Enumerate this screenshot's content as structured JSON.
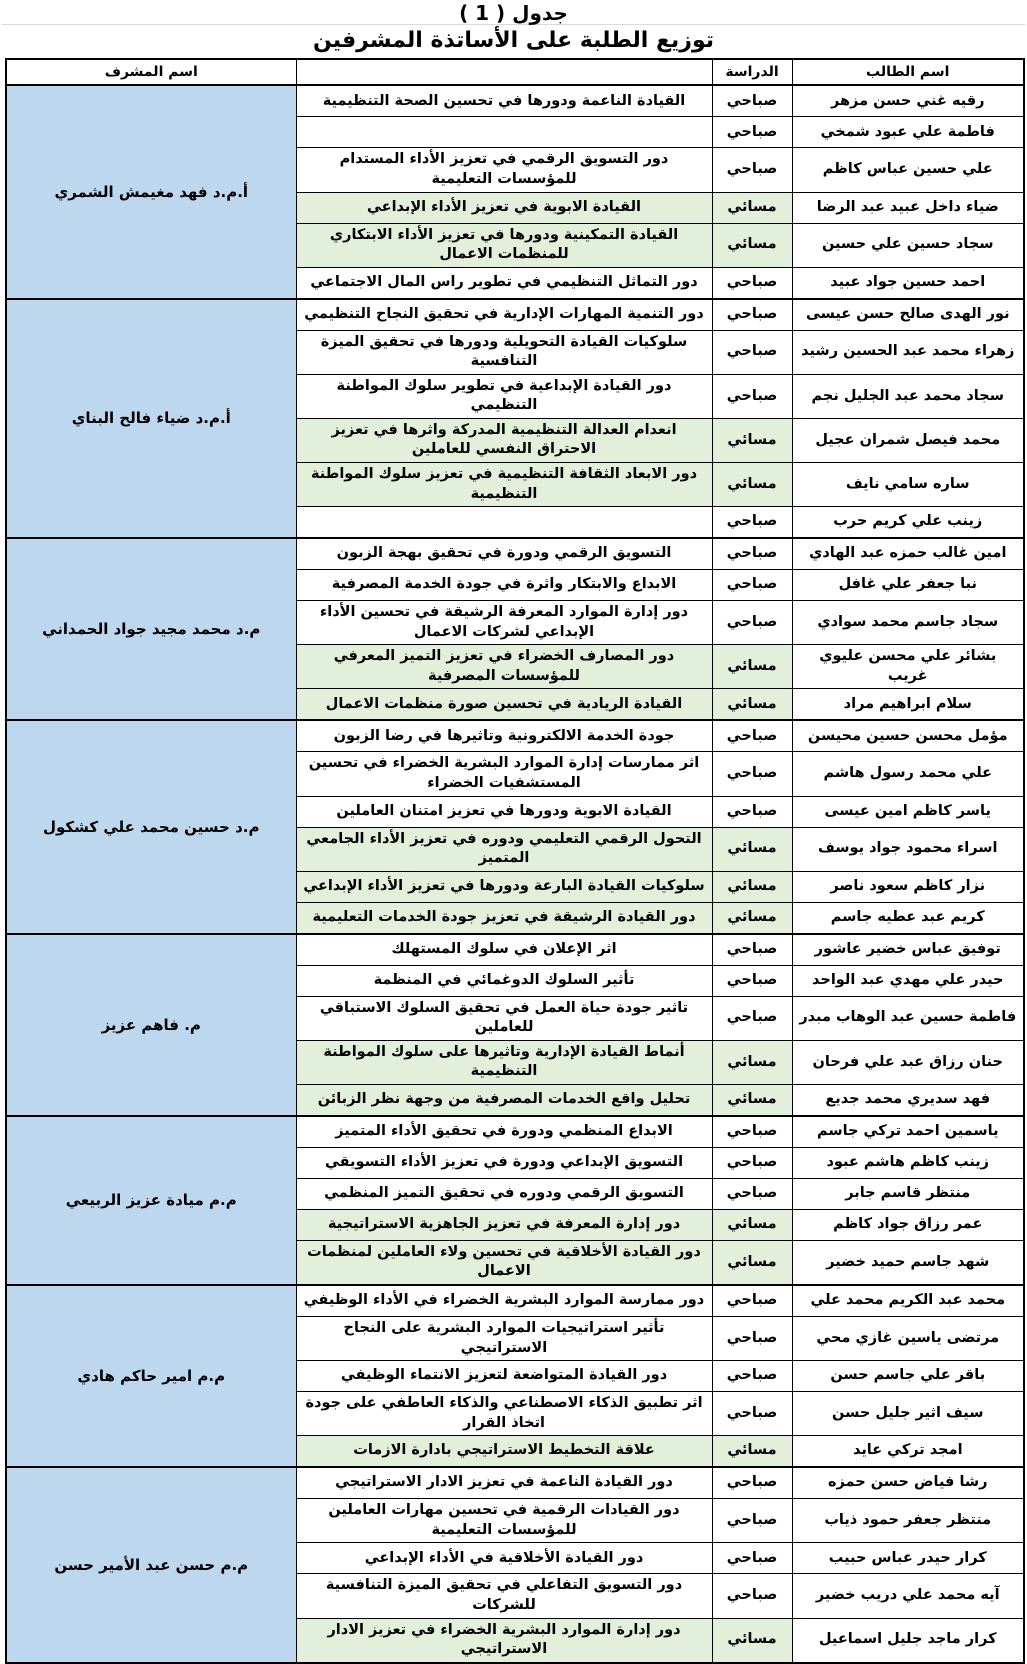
{
  "title": "جدول ( 1 )",
  "subtitle": "توزيع الطلبة على الأساتذة المشرفين",
  "columns": {
    "student": "اسم الطالب",
    "study": "الدراسة",
    "thesis": "",
    "supervisor": "اسم المشرف"
  },
  "colors": {
    "supervisor_bg": "#bdd7ee",
    "evening_row_bg": "#e2efda",
    "border": "#000000"
  },
  "study_values": {
    "morning": "صباحي",
    "evening": "مسائي"
  },
  "evening_value": "مسائي",
  "groups": [
    {
      "supervisor": "أ.م.د فهد مغيمش الشمري",
      "rows": [
        {
          "student": "رقيه غني حسن مزهر",
          "study": "صباحي",
          "thesis": "القيادة الناعمة ودورها في تحسين الصحة التنظيمية"
        },
        {
          "student": "فاطمة علي عبود شمخي",
          "study": "صباحي",
          "thesis": ""
        },
        {
          "student": "علي حسين عباس كاظم",
          "study": "صباحي",
          "thesis": "دور التسويق الرقمي في تعزيز الأداء المستدام للمؤسسات التعليمية"
        },
        {
          "student": "ضياء داخل عبيد عبد الرضا",
          "study": "مسائي",
          "thesis": "القيادة الابوية في تعزيز الأداء الإبداعي"
        },
        {
          "student": "سجاد حسين علي حسين",
          "study": "مسائي",
          "thesis": "القيادة التمكينية ودورها في تعزيز الأداء الابتكاري للمنظمات الاعمال"
        },
        {
          "student": "احمد حسين جواد عبيد",
          "study": "صباحي",
          "thesis": "دور التماثل التنظيمي في تطوير راس المال الاجتماعي"
        }
      ]
    },
    {
      "supervisor": "أ.م.د ضياء فالح البناي",
      "rows": [
        {
          "student": "نور الهدى صالح حسن عيسى",
          "study": "صباحي",
          "thesis": "دور التنمية المهارات الإدارية في تحقيق النجاح التنظيمي"
        },
        {
          "student": "زهراء محمد عبد الحسين رشيد",
          "study": "صباحي",
          "thesis": "سلوكيات القيادة التحويلية ودورها في تحقيق الميزة التنافسية"
        },
        {
          "student": "سجاد محمد عبد الجليل نجم",
          "study": "صباحي",
          "thesis": "دور القيادة الإبداعية في تطوير سلوك المواطنة التنظيمي"
        },
        {
          "student": "محمد فيصل شمران عجيل",
          "study": "مسائي",
          "thesis": "انعدام العدالة التنظيمية المدركة واثرها في تعزيز الاحتراق النفسي للعاملين"
        },
        {
          "student": "ساره سامي نايف",
          "study": "مسائي",
          "thesis": "دور الابعاد الثقافة التنظيمية في تعزيز سلوك المواطنة التنظيمية"
        },
        {
          "student": "زينب علي كريم حرب",
          "study": "صباحي",
          "thesis": ""
        }
      ]
    },
    {
      "supervisor": "م.د محمد مجيد جواد الحمداني",
      "rows": [
        {
          "student": "امين غالب حمزه عبد الهادي",
          "study": "صباحي",
          "thesis": "التسويق الرقمي ودورة في تحقيق بهجة الزبون"
        },
        {
          "student": "نبا جعفر علي غافل",
          "study": "صباحي",
          "thesis": "الابداع والابتكار واثرة في جودة الخدمة المصرفية"
        },
        {
          "student": "سجاد جاسم محمد سوادي",
          "study": "صباحي",
          "thesis": "دور إدارة الموارد المعرفة الرشيقة في تحسين الأداء الإبداعي لشركات الاعمال"
        },
        {
          "student": "بشائر علي محسن عليوي غريب",
          "study": "مسائي",
          "thesis": "دور المصارف الخضراء في تعزيز التميز المعرفي للمؤسسات المصرفية"
        },
        {
          "student": "سلام ابراهيم مراد",
          "study": "مسائي",
          "thesis": "القيادة الريادية في تحسين صورة منظمات الاعمال"
        }
      ]
    },
    {
      "supervisor": "م.د حسين محمد علي كشكول",
      "rows": [
        {
          "student": "مؤمل محسن حسين محيسن",
          "study": "صباحي",
          "thesis": "جودة الخدمة الالكترونية وتاثيرها في رضا الزبون"
        },
        {
          "student": "علي محمد رسول هاشم",
          "study": "صباحي",
          "thesis": "اثر ممارسات إدارة الموارد البشرية الخضراء في تحسين المستشفيات الخضراء"
        },
        {
          "student": "ياسر كاظم امين عيسى",
          "study": "صباحي",
          "thesis": "القيادة الابوية ودورها في تعزيز امتنان العاملين"
        },
        {
          "student": "اسراء محمود جواد يوسف",
          "study": "مسائي",
          "thesis": "التحول الرقمي التعليمي ودوره في تعزيز الأداء الجامعي المتميز"
        },
        {
          "student": "نزار كاظم سعود ناصر",
          "study": "مسائي",
          "thesis": "سلوكيات القيادة البارعة ودورها في تعزيز الأداء الإبداعي"
        },
        {
          "student": "كريم عبد عطيه جاسم",
          "study": "مسائي",
          "thesis": "دور القيادة الرشيقة في تعزيز جودة الخدمات التعليمية"
        }
      ]
    },
    {
      "supervisor": "م. فاهم عزيز",
      "rows": [
        {
          "student": "توفيق عباس خضير عاشور",
          "study": "صباحي",
          "thesis": "اثر الإعلان في سلوك المستهلك"
        },
        {
          "student": "حيدر علي مهدي عبد الواحد",
          "study": "صباحي",
          "thesis": "تأثير السلوك الدوغمائي في المنظمة"
        },
        {
          "student": "فاطمة حسين عبد الوهاب مبدر",
          "study": "صباحي",
          "thesis": "تاثير جودة حياة العمل في تحقيق السلوك الاستباقي للعاملين"
        },
        {
          "student": "حنان رزاق عبد علي فرحان",
          "study": "مسائي",
          "thesis": "أنماط القيادة الإدارية وتاثيرها على سلوك المواطنة التنظيمية"
        },
        {
          "student": "فهد سديري محمد جديع",
          "study": "مسائي",
          "thesis": "تحليل واقع الخدمات المصرفية من وجهة نظر الزبائن"
        }
      ]
    },
    {
      "supervisor": "م.م ميادة عزيز الربيعي",
      "rows": [
        {
          "student": "ياسمين احمد تركي جاسم",
          "study": "صباحي",
          "thesis": "الابداع المنظمي ودورة في تحقيق الأداء المتميز"
        },
        {
          "student": "زينب كاظم هاشم عبود",
          "study": "صباحي",
          "thesis": "التسويق الإبداعي ودورة في تعزيز الأداء التسويقي"
        },
        {
          "student": "منتظر قاسم جابر",
          "study": "صباحي",
          "thesis": "التسويق الرقمي ودوره في تحقيق التميز المنظمي"
        },
        {
          "student": "عمر رزاق جواد كاظم",
          "study": "مسائي",
          "thesis": "دور إدارة المعرفة في تعزيز الجاهزية الاستراتيجية"
        },
        {
          "student": "شهد جاسم حميد خضير",
          "study": "مسائي",
          "thesis": "دور القيادة الأخلاقية في تحسين ولاء العاملين لمنظمات الاعمال"
        }
      ]
    },
    {
      "supervisor": "م.م امير حاكم هادي",
      "rows": [
        {
          "student": "محمد عبد الكريم محمد علي",
          "study": "صباحي",
          "thesis": "دور ممارسة الموارد البشرية الخضراء في الأداء الوظيفي"
        },
        {
          "student": "مرتضى ياسين غازي محي",
          "study": "صباحي",
          "thesis": "تأثير استراتيجيات الموارد البشرية على النجاح الاستراتيجي"
        },
        {
          "student": "باقر علي جاسم حسن",
          "study": "صباحي",
          "thesis": "دور القيادة المتواضعة لتعزيز الانتماء الوظيفي"
        },
        {
          "student": "سيف اثير جليل حسن",
          "study": "صباحي",
          "thesis": "اثر تطبيق الذكاء الاصطناعي والذكاء العاطفي على جودة اتخاذ القرار"
        },
        {
          "student": "امجد تركي عايد",
          "study": "مسائي",
          "thesis": "علاقة التخطيط الاستراتيجي بادارة الازمات"
        }
      ]
    },
    {
      "supervisor": "م.م حسن عبد الأمير حسن",
      "rows": [
        {
          "student": "رشا فياض حسن حمزه",
          "study": "صباحي",
          "thesis": "دور القيادة الناعمة في تعزيز الادار الاستراتيجي"
        },
        {
          "student": "منتظر جعفر حمود ذياب",
          "study": "صباحي",
          "thesis": "دور القيادات الرقمية في تحسين مهارات العاملين للمؤسسات التعليمية"
        },
        {
          "student": "كرار حيدر عباس حبيب",
          "study": "صباحي",
          "thesis": "دور القيادة الأخلاقية في الأداء الإبداعي"
        },
        {
          "student": "آيه محمد علي دريب خضير",
          "study": "صباحي",
          "thesis": "دور التسويق التفاعلي في تحقيق الميزة التنافسية للشركات"
        },
        {
          "student": "كرار ماجد جليل اسماعيل",
          "study": "مسائي",
          "thesis": "دور إدارة الموارد البشرية الخضراء في تعزيز الادار الاستراتيجي"
        }
      ]
    }
  ]
}
